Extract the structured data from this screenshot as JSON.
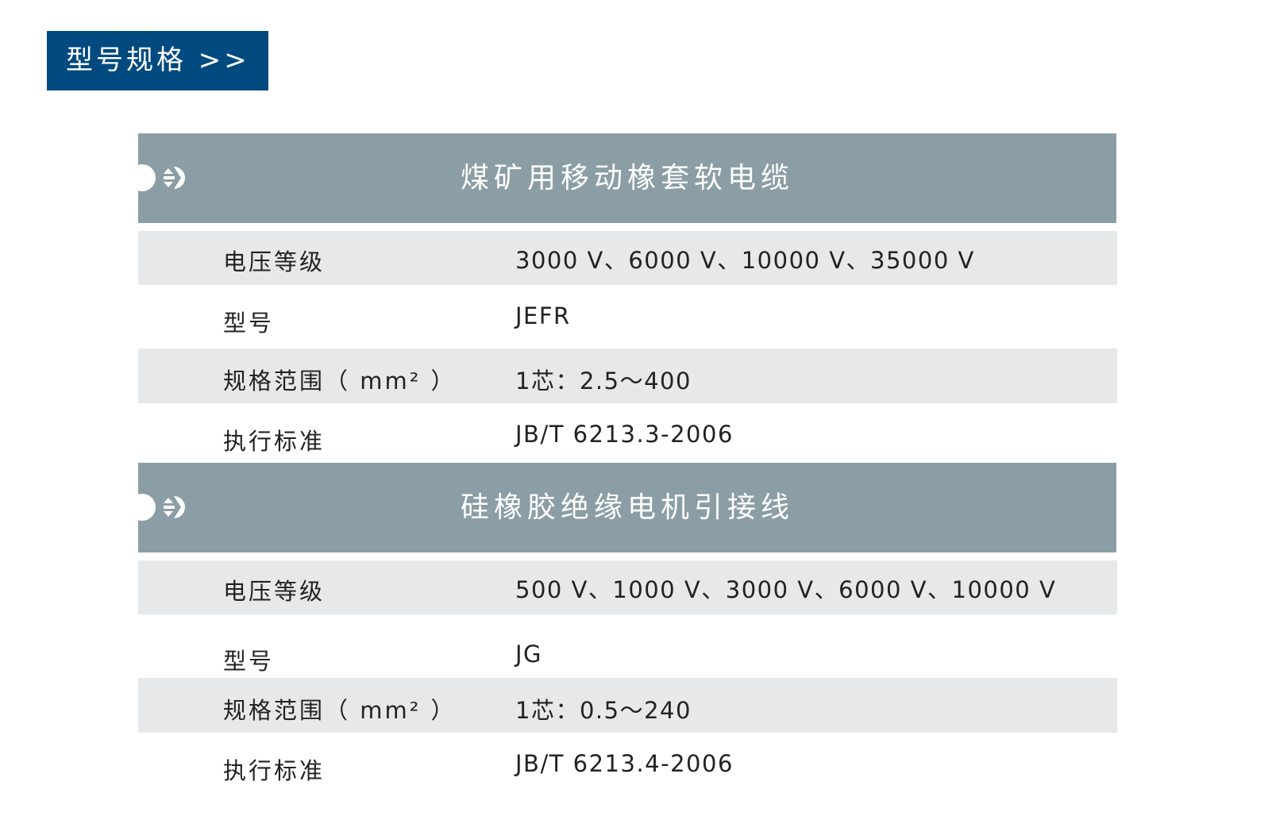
{
  "page_title": "型号规格 >>",
  "sections": [
    {
      "title": "煤矿用移动橡套软电缆",
      "rows": [
        {
          "label": "电压等级",
          "value": "3000 V、6000 V、10000 V、35000 V"
        },
        {
          "label": "型号",
          "value": "JEFR"
        },
        {
          "label": "规格范围（ mm² ）",
          "value": "1芯：2.5～400"
        },
        {
          "label": "执行标准",
          "value": "JB/T 6213.3-2006"
        }
      ]
    },
    {
      "title": "硅橡胶绝缘电机引接线",
      "rows": [
        {
          "label": "电压等级",
          "value": "500 V、1000 V、3000 V、6000 V、10000 V"
        },
        {
          "label": "型号",
          "value": "JG"
        },
        {
          "label": "规格范围（ mm² ）",
          "value": "1芯：0.5～240"
        },
        {
          "label": "执行标准",
          "value": "JB/T 6213.4-2006"
        }
      ]
    }
  ],
  "colors": {
    "title_bg": "#004a80",
    "section_header": "#8b9ea5",
    "row_alt": "#e6e8ea"
  },
  "icons": [
    "arrow-right-circle-icon"
  ]
}
